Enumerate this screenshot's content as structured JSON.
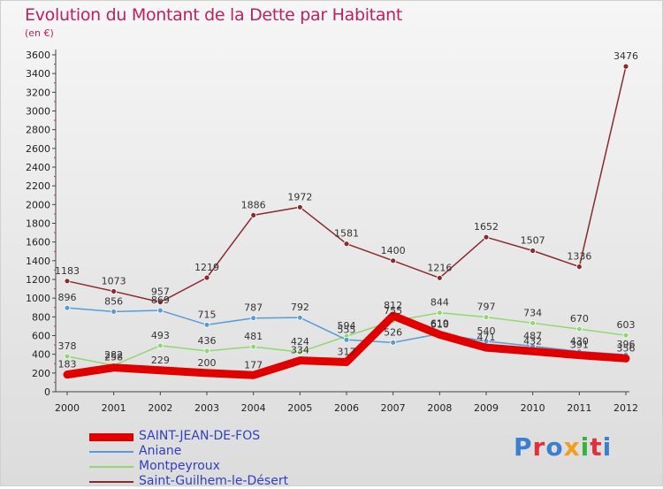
{
  "title": "Evolution du Montant de la Dette par Habitant",
  "unit": "(en €)",
  "logo_text": "Proxiti",
  "logo_colors": [
    "#3a7fd0",
    "#e0303a",
    "#3a7fd0",
    "#f0a020",
    "#3ab040",
    "#e0303a",
    "#3a7fd0"
  ],
  "chart_data": {
    "type": "line",
    "title": "Evolution du Montant de la Dette par Habitant",
    "ylabel": "(en €)",
    "xlabel": "",
    "x": [
      "2000",
      "2001",
      "2002",
      "2003",
      "2004",
      "2005",
      "2006",
      "2007",
      "2008",
      "2009",
      "2010",
      "2011",
      "2012"
    ],
    "ylim": [
      0,
      3600
    ],
    "yticks": [
      0,
      200,
      400,
      600,
      800,
      1000,
      1200,
      1400,
      1600,
      1800,
      2000,
      2200,
      2400,
      2600,
      2800,
      3000,
      3200,
      3400,
      3600
    ],
    "grid": false,
    "legend": "bottom-left",
    "series": [
      {
        "name": "SAINT-JEAN-DE-FOS",
        "color": "#e00000",
        "values": [
          183,
          258,
          229,
          200,
          177,
          334,
          317,
          812,
          610,
          471,
          432,
          391,
          356
        ],
        "labels": [
          "183",
          "258",
          "229",
          "200",
          "177",
          "334",
          "317",
          "812",
          "610",
          "471",
          "432",
          "391",
          "356"
        ],
        "label_offset": [
          -1,
          -1,
          -1,
          -1,
          -1,
          -1,
          -1,
          -1,
          -1,
          -1,
          -1,
          -1,
          -1
        ]
      },
      {
        "name": "Aniane",
        "color": "#5b9bd5",
        "values": [
          896,
          856,
          869,
          715,
          787,
          792,
          555,
          526,
          619,
          540,
          487,
          430,
          396
        ],
        "labels": [
          "896",
          "856",
          "869",
          "715",
          "787",
          "792",
          "555",
          "526",
          "619",
          "540",
          "487",
          "430",
          "396"
        ],
        "label_offset": [
          -1,
          -1,
          -1,
          -1,
          -1,
          -1,
          -1,
          -1,
          -1,
          -1,
          -1,
          -1,
          -1
        ]
      },
      {
        "name": "Montpeyroux",
        "color": "#90d870",
        "values": [
          378,
          282,
          493,
          436,
          481,
          424,
          594,
          755,
          844,
          797,
          734,
          670,
          603
        ],
        "labels": [
          "378",
          "282",
          "493",
          "436",
          "481",
          "424",
          "594",
          "755",
          "844",
          "797",
          "734",
          "670",
          "603"
        ],
        "label_offset": [
          -1,
          -1,
          -1,
          -1,
          -1,
          -1,
          -1,
          -1,
          -1,
          -1,
          -1,
          -1,
          -1
        ]
      },
      {
        "name": "Saint-Guilhem-le-Désert",
        "color": "#8b2a2a",
        "values": [
          1183,
          1073,
          957,
          1219,
          1886,
          1972,
          1581,
          1400,
          1216,
          1652,
          1507,
          1336,
          3476
        ],
        "labels": [
          "1183",
          "1073",
          "957",
          "1219",
          "1886",
          "1972",
          "1581",
          "1400",
          "1216",
          "1652",
          "1507",
          "1336",
          "3476"
        ],
        "label_offset": [
          -1,
          -1,
          -1,
          -1,
          -1,
          -1,
          -1,
          -1,
          -1,
          -1,
          -1,
          -1,
          -1
        ]
      }
    ]
  }
}
